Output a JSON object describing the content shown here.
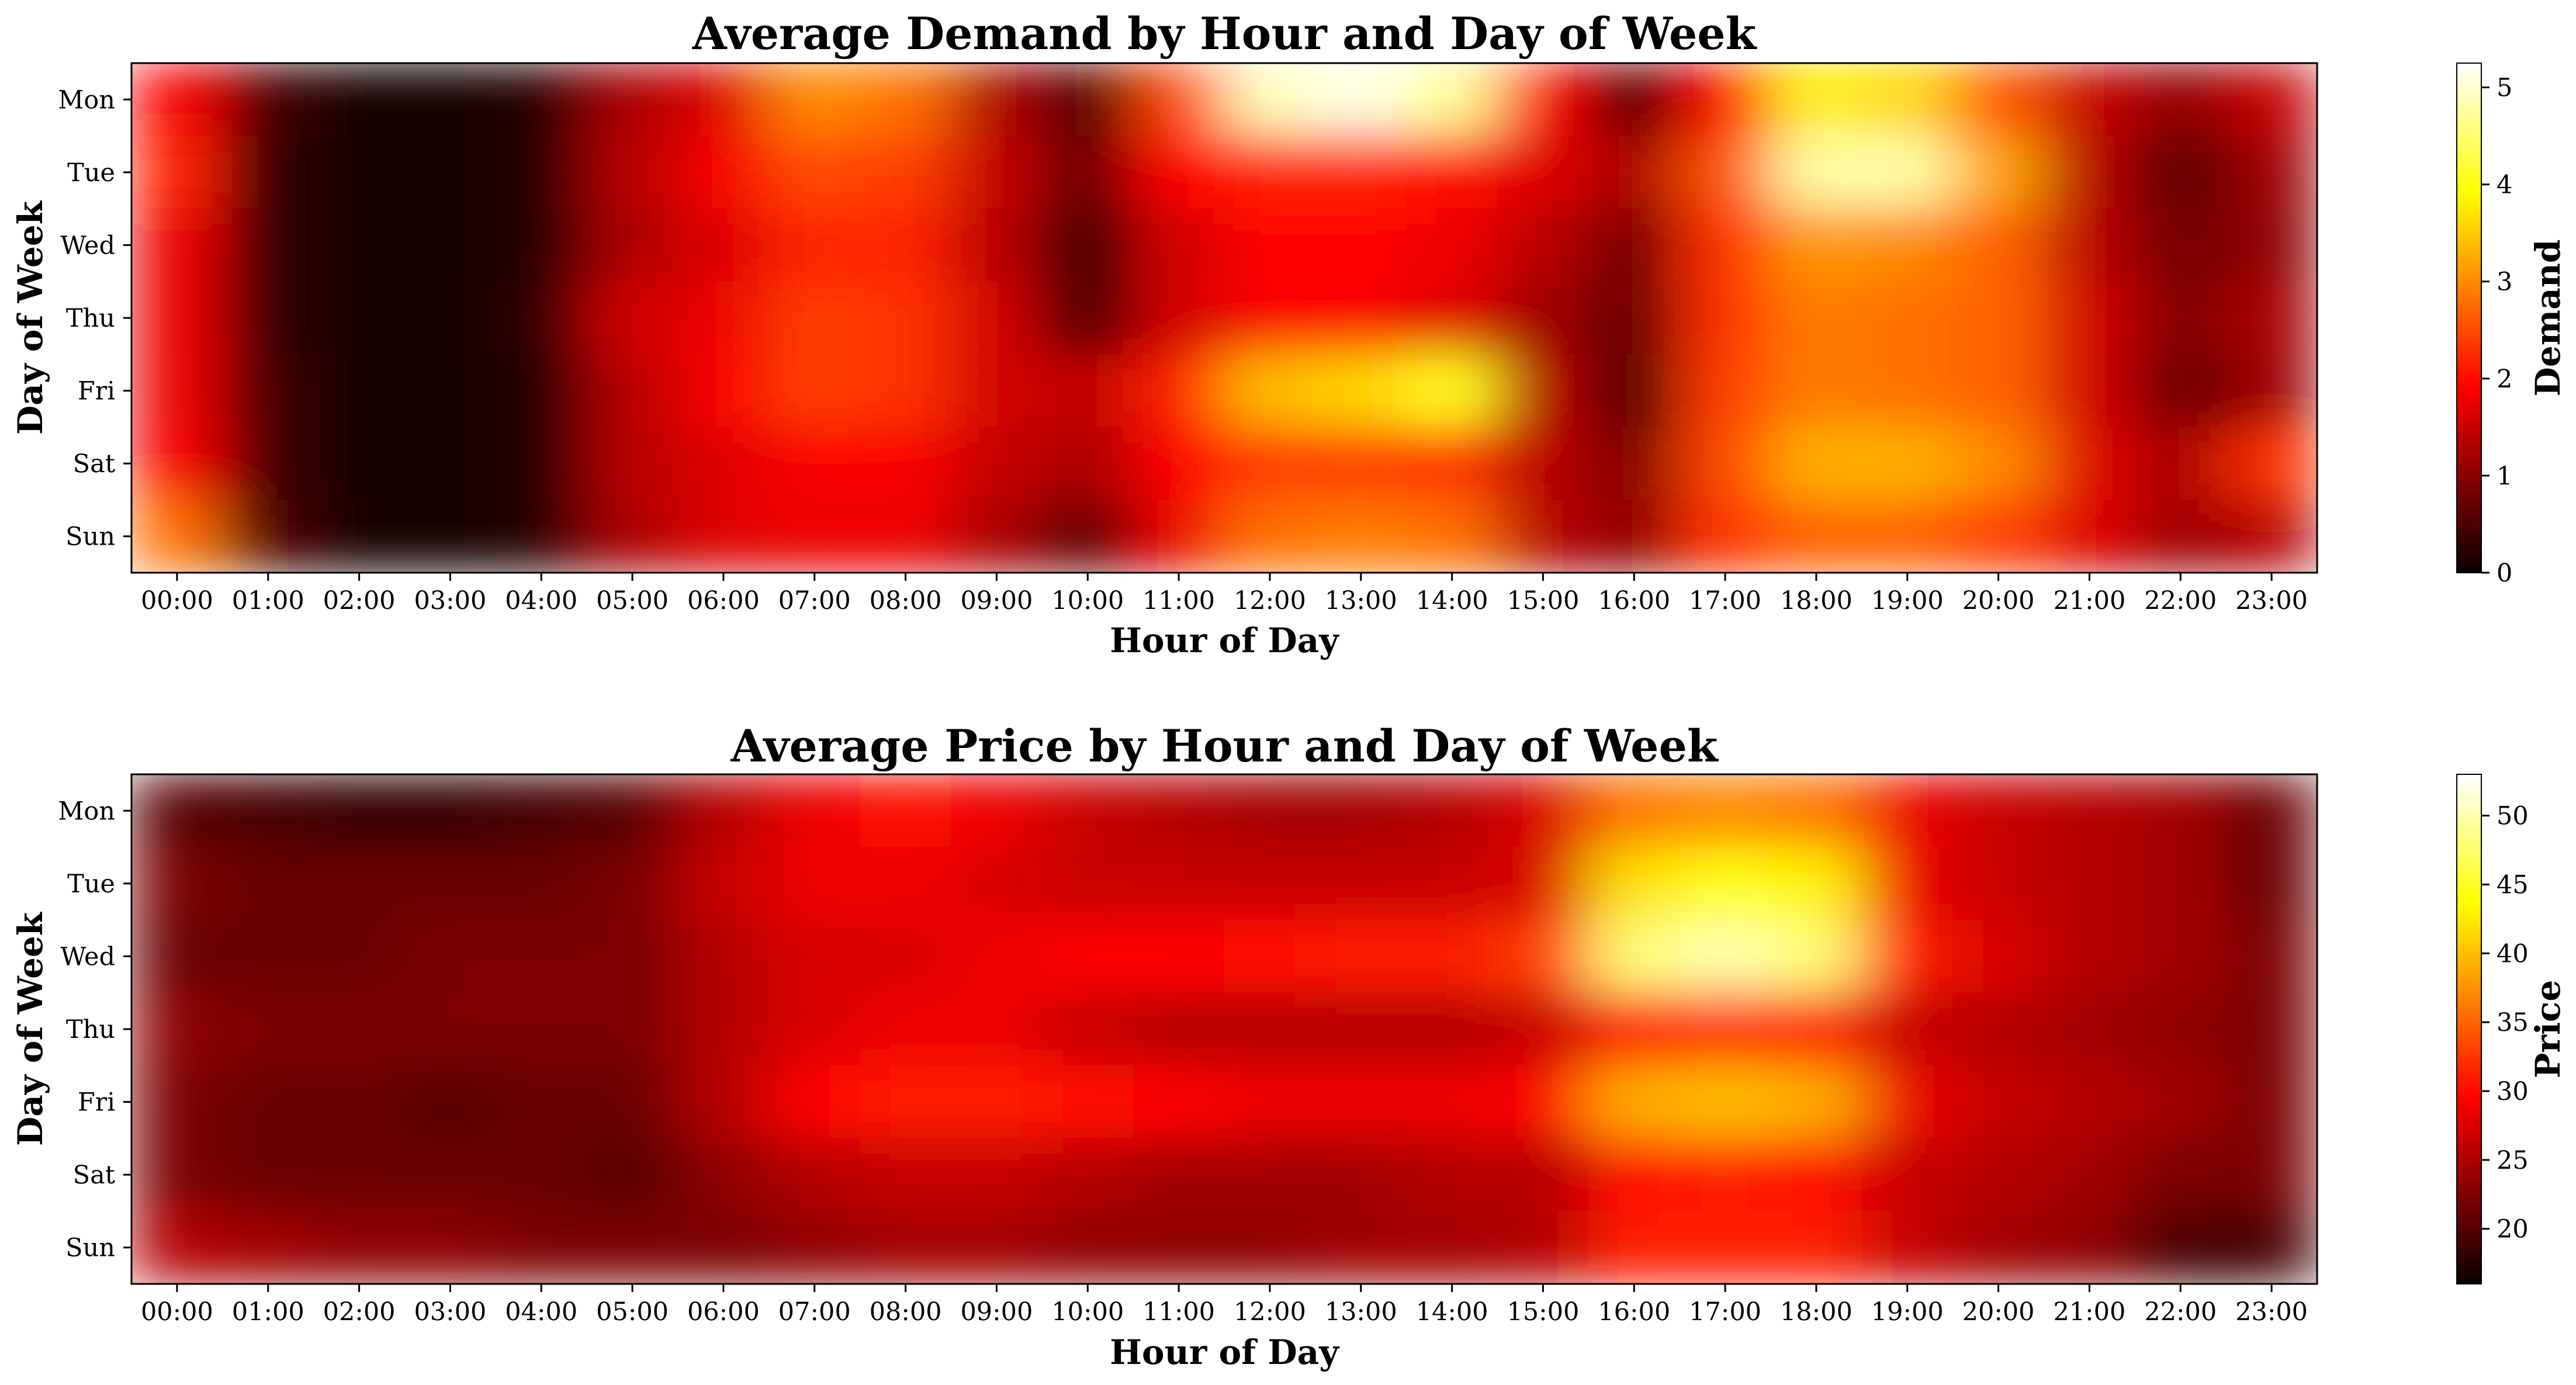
{
  "chart_data": [
    {
      "type": "heatmap",
      "title": "Average Demand by Hour and Day of Week",
      "xlabel": "Hour of Day",
      "ylabel": "Day of Week",
      "x": [
        "00:00",
        "01:00",
        "02:00",
        "03:00",
        "04:00",
        "05:00",
        "06:00",
        "07:00",
        "08:00",
        "09:00",
        "10:00",
        "11:00",
        "12:00",
        "13:00",
        "14:00",
        "15:00",
        "16:00",
        "17:00",
        "18:00",
        "19:00",
        "20:00",
        "21:00",
        "22:00",
        "23:00"
      ],
      "y": [
        "Mon",
        "Tue",
        "Wed",
        "Thu",
        "Fri",
        "Sat",
        "Sun"
      ],
      "values": [
        [
          1.8,
          0.4,
          0.1,
          0.1,
          0.2,
          1.2,
          1.6,
          3.0,
          2.8,
          1.2,
          0.5,
          2.5,
          4.9,
          5.1,
          4.7,
          1.8,
          0.5,
          1.9,
          3.8,
          3.6,
          2.6,
          1.4,
          1.0,
          1.4
        ],
        [
          2.2,
          0.3,
          0.1,
          0.1,
          0.2,
          1.3,
          1.8,
          2.5,
          2.4,
          1.4,
          0.7,
          1.9,
          2.2,
          2.2,
          2.0,
          1.6,
          1.2,
          2.6,
          4.8,
          4.8,
          3.2,
          1.3,
          0.6,
          1.1
        ],
        [
          1.7,
          0.3,
          0.1,
          0.1,
          0.2,
          1.2,
          1.6,
          2.2,
          2.2,
          1.3,
          0.3,
          1.5,
          1.9,
          1.9,
          1.7,
          1.3,
          0.8,
          2.3,
          3.1,
          3.0,
          2.7,
          1.3,
          0.8,
          1.0
        ],
        [
          1.7,
          0.3,
          0.1,
          0.1,
          0.3,
          1.5,
          1.7,
          2.4,
          2.3,
          1.5,
          0.4,
          1.5,
          1.8,
          1.8,
          1.6,
          1.1,
          0.7,
          2.3,
          2.9,
          2.8,
          2.7,
          1.5,
          0.9,
          1.2
        ],
        [
          1.7,
          0.4,
          0.1,
          0.1,
          0.2,
          1.3,
          1.8,
          2.4,
          2.3,
          1.5,
          1.4,
          2.2,
          3.4,
          3.6,
          4.1,
          1.3,
          0.5,
          2.4,
          2.9,
          2.8,
          2.7,
          1.5,
          0.7,
          1.1
        ],
        [
          1.8,
          0.4,
          0.1,
          0.1,
          0.2,
          1.3,
          1.6,
          1.8,
          1.8,
          1.4,
          1.2,
          1.9,
          2.4,
          2.4,
          2.3,
          1.3,
          0.9,
          2.5,
          3.3,
          3.3,
          3.0,
          1.6,
          1.2,
          2.3
        ],
        [
          2.8,
          0.5,
          0.1,
          0.1,
          0.2,
          1.2,
          1.6,
          1.7,
          1.7,
          1.2,
          0.6,
          1.7,
          2.8,
          2.9,
          2.8,
          1.3,
          1.0,
          2.3,
          2.7,
          2.7,
          2.4,
          1.6,
          1.1,
          1.3
        ]
      ],
      "colorbar": {
        "label": "Demand",
        "range": [
          0,
          5.25
        ],
        "ticks": [
          "0",
          "1",
          "2",
          "3",
          "4",
          "5"
        ],
        "tick_values": [
          0,
          1,
          2,
          3,
          4,
          5
        ]
      },
      "colormap": "hot"
    },
    {
      "type": "heatmap",
      "title": "Average Price by Hour and Day of Week",
      "xlabel": "Hour of Day",
      "ylabel": "Day of Week",
      "x": [
        "00:00",
        "01:00",
        "02:00",
        "03:00",
        "04:00",
        "05:00",
        "06:00",
        "07:00",
        "08:00",
        "09:00",
        "10:00",
        "11:00",
        "12:00",
        "13:00",
        "14:00",
        "15:00",
        "16:00",
        "17:00",
        "18:00",
        "19:00",
        "20:00",
        "21:00",
        "22:00",
        "23:00"
      ],
      "y": [
        "Mon",
        "Tue",
        "Wed",
        "Thu",
        "Fri",
        "Sat",
        "Sun"
      ],
      "values": [
        [
          20,
          19,
          18,
          18,
          19,
          20,
          25,
          28,
          30,
          28,
          26,
          25,
          24,
          24,
          25,
          27,
          36,
          37,
          36,
          28,
          26,
          25,
          24,
          21
        ],
        [
          22,
          21,
          21,
          21,
          21,
          22,
          26,
          28,
          28,
          27,
          26,
          26,
          26,
          26,
          26,
          27,
          42,
          44,
          43,
          28,
          26,
          25,
          24,
          21
        ],
        [
          21,
          21,
          21,
          22,
          22,
          22,
          25,
          27,
          27,
          28,
          29,
          29,
          30,
          31,
          31,
          33,
          48,
          50,
          48,
          31,
          27,
          25,
          24,
          22
        ],
        [
          23,
          22,
          22,
          22,
          22,
          22,
          25,
          27,
          28,
          28,
          26,
          25,
          25,
          25,
          25,
          26,
          31,
          32,
          31,
          26,
          25,
          24,
          23,
          22
        ],
        [
          22,
          21,
          21,
          20,
          21,
          21,
          25,
          29,
          31,
          31,
          30,
          29,
          28,
          28,
          28,
          29,
          39,
          40,
          39,
          28,
          26,
          25,
          24,
          22
        ],
        [
          22,
          21,
          21,
          21,
          21,
          20,
          23,
          25,
          26,
          26,
          25,
          24,
          24,
          24,
          25,
          25,
          30,
          31,
          30,
          26,
          25,
          24,
          22,
          22
        ],
        [
          25,
          24,
          23,
          23,
          22,
          22,
          22,
          23,
          24,
          24,
          23,
          23,
          23,
          24,
          24,
          25,
          31,
          31,
          31,
          26,
          24,
          23,
          19,
          19
        ]
      ],
      "colorbar": {
        "label": "Price",
        "range": [
          16,
          53
        ],
        "ticks": [
          "20",
          "25",
          "30",
          "35",
          "40",
          "45",
          "50"
        ],
        "tick_values": [
          20,
          25,
          30,
          35,
          40,
          45,
          50
        ]
      },
      "colormap": "hot"
    }
  ]
}
